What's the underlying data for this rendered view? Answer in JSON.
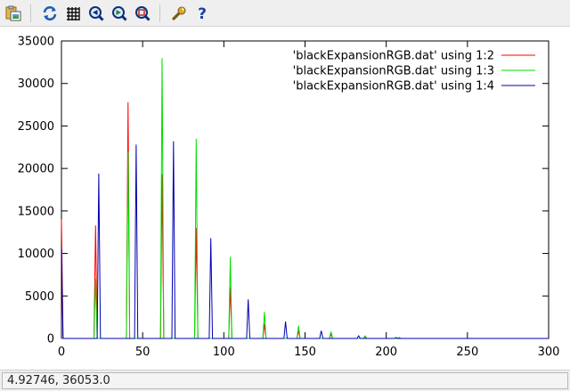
{
  "toolbar": {
    "buttons": [
      {
        "icon": "clipboard-icon",
        "name": "copy-to-clipboard-button"
      },
      {
        "icon": "replot-icon",
        "name": "replot-button"
      },
      {
        "icon": "grid-icon",
        "name": "grid-button"
      },
      {
        "icon": "zoom-previous-icon",
        "name": "zoom-previous-button"
      },
      {
        "icon": "zoom-next-icon",
        "name": "zoom-next-button"
      },
      {
        "icon": "zoom-unzoom-icon",
        "name": "unzoom-button"
      },
      {
        "icon": "wrench-icon",
        "name": "settings-button"
      },
      {
        "icon": "help-icon",
        "name": "help-button"
      }
    ]
  },
  "status": {
    "coords": "4.92746,  36053.0"
  },
  "chart_data": {
    "type": "line",
    "xlim": [
      0,
      300
    ],
    "ylim": [
      0,
      35000
    ],
    "x_ticks": [
      0,
      50,
      100,
      150,
      200,
      250,
      300
    ],
    "y_ticks": [
      0,
      5000,
      10000,
      15000,
      20000,
      25000,
      30000,
      35000
    ],
    "x_tick_labels": [
      "0",
      "50",
      "100",
      "150",
      "200",
      "250",
      "300"
    ],
    "y_tick_labels": [
      "0",
      "5000",
      "10000",
      "15000",
      "20000",
      "25000",
      "30000",
      "35000"
    ],
    "grid": false,
    "legend_position": "top-right",
    "series": [
      {
        "name": "'blackExpansionRGB.dat' using 1:2",
        "color": "#ff0000",
        "points": [
          [
            0,
            14000
          ],
          [
            1,
            0
          ],
          [
            20,
            0
          ],
          [
            21,
            13300
          ],
          [
            22,
            0
          ],
          [
            40,
            0
          ],
          [
            41,
            27800
          ],
          [
            42,
            0
          ],
          [
            61,
            0
          ],
          [
            62,
            19300
          ],
          [
            63,
            0
          ],
          [
            82,
            0
          ],
          [
            83,
            13000
          ],
          [
            84,
            0
          ],
          [
            103,
            0
          ],
          [
            104,
            6000
          ],
          [
            105,
            0
          ],
          [
            124,
            0
          ],
          [
            125,
            1700
          ],
          [
            126,
            0
          ],
          [
            145,
            0
          ],
          [
            146,
            900
          ],
          [
            147,
            0
          ],
          [
            165,
            0
          ],
          [
            166,
            500
          ],
          [
            167,
            0
          ],
          [
            186,
            0
          ],
          [
            187,
            200
          ],
          [
            188,
            0
          ],
          [
            207,
            0
          ],
          [
            208,
            100
          ],
          [
            209,
            0
          ],
          [
            300,
            0
          ]
        ]
      },
      {
        "name": "'blackExpansionRGB.dat' using 1:3",
        "color": "#00dd00",
        "points": [
          [
            0,
            0
          ],
          [
            20,
            0
          ],
          [
            21,
            7000
          ],
          [
            22,
            0
          ],
          [
            40,
            0
          ],
          [
            41,
            22000
          ],
          [
            42,
            0
          ],
          [
            61,
            0
          ],
          [
            62,
            33000
          ],
          [
            63,
            0
          ],
          [
            82,
            0
          ],
          [
            83,
            23500
          ],
          [
            84,
            0
          ],
          [
            103,
            0
          ],
          [
            104,
            9600
          ],
          [
            105,
            0
          ],
          [
            124,
            0
          ],
          [
            125,
            3100
          ],
          [
            126,
            0
          ],
          [
            145,
            0
          ],
          [
            146,
            1500
          ],
          [
            147,
            0
          ],
          [
            165,
            0
          ],
          [
            166,
            800
          ],
          [
            167,
            0
          ],
          [
            186,
            0
          ],
          [
            187,
            300
          ],
          [
            188,
            0
          ],
          [
            207,
            0
          ],
          [
            208,
            100
          ],
          [
            209,
            0
          ],
          [
            300,
            0
          ]
        ]
      },
      {
        "name": "'blackExpansionRGB.dat' using 1:4",
        "color": "#0000b0",
        "points": [
          [
            0,
            10500
          ],
          [
            1,
            0
          ],
          [
            22,
            0
          ],
          [
            23,
            19400
          ],
          [
            24,
            0
          ],
          [
            45,
            0
          ],
          [
            46,
            22800
          ],
          [
            47,
            0
          ],
          [
            68,
            0
          ],
          [
            69,
            23200
          ],
          [
            70,
            0
          ],
          [
            91,
            0
          ],
          [
            92,
            11800
          ],
          [
            93,
            0
          ],
          [
            114,
            0
          ],
          [
            115,
            4600
          ],
          [
            116,
            0
          ],
          [
            137,
            0
          ],
          [
            138,
            2000
          ],
          [
            139,
            0
          ],
          [
            159,
            0
          ],
          [
            160,
            900
          ],
          [
            161,
            0
          ],
          [
            182,
            0
          ],
          [
            183,
            300
          ],
          [
            184,
            0
          ],
          [
            205,
            0
          ],
          [
            206,
            100
          ],
          [
            207,
            0
          ],
          [
            300,
            0
          ]
        ]
      }
    ]
  }
}
